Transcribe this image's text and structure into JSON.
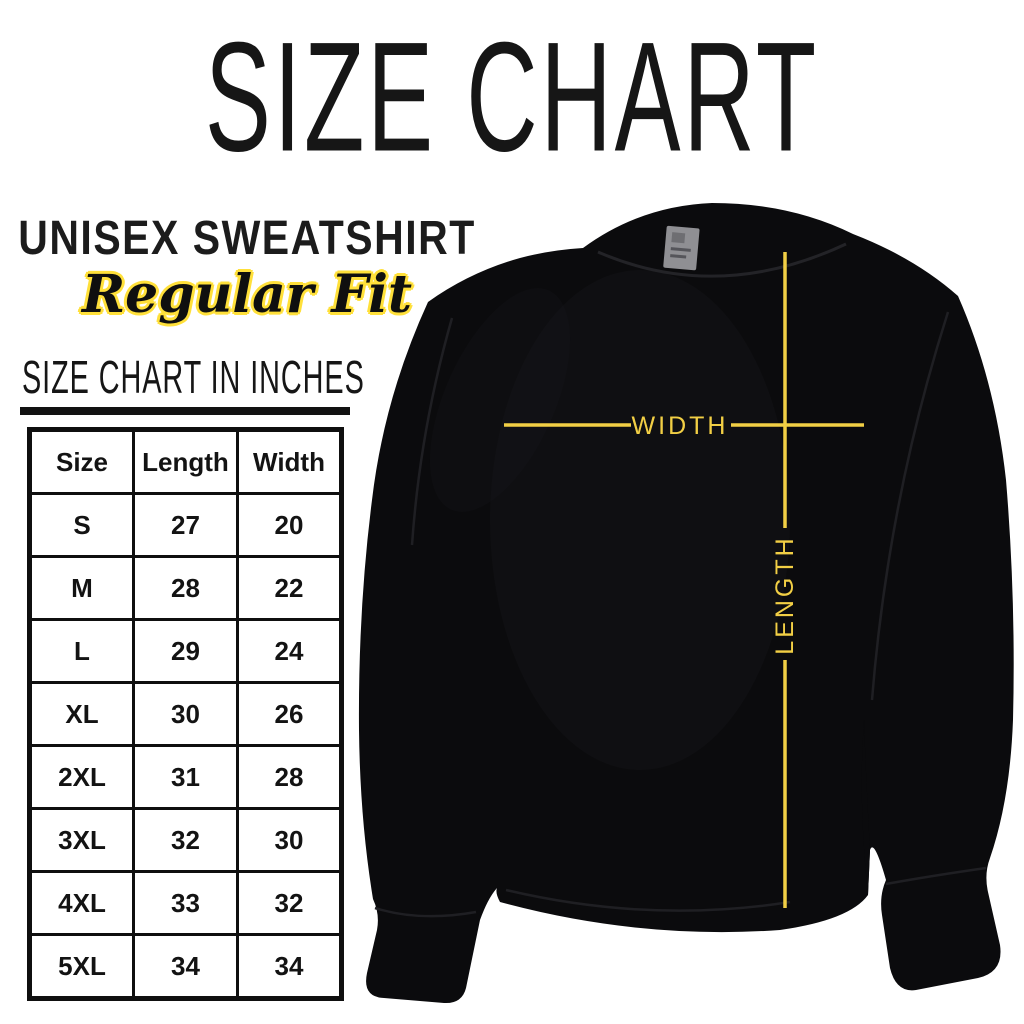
{
  "title": "SIZE CHART",
  "product": {
    "name": "UNISEX SWEATSHIRT",
    "fit": "Regular Fit"
  },
  "table": {
    "heading": "SIZE CHART IN INCHES",
    "columns": [
      "Size",
      "Length",
      "Width"
    ],
    "rows": [
      [
        "S",
        "27",
        "20"
      ],
      [
        "M",
        "28",
        "22"
      ],
      [
        "L",
        "29",
        "24"
      ],
      [
        "XL",
        "30",
        "26"
      ],
      [
        "2XL",
        "31",
        "28"
      ],
      [
        "3XL",
        "32",
        "30"
      ],
      [
        "4XL",
        "33",
        "32"
      ],
      [
        "5XL",
        "34",
        "34"
      ]
    ]
  },
  "diagram": {
    "width_label": "WIDTH",
    "length_label": "LENGTH",
    "line_color": "#F2CF45",
    "garment_color": "#0B0B0D",
    "script_outline_color": "#FFE03A",
    "neck_tag_color": "#8F8F93"
  }
}
